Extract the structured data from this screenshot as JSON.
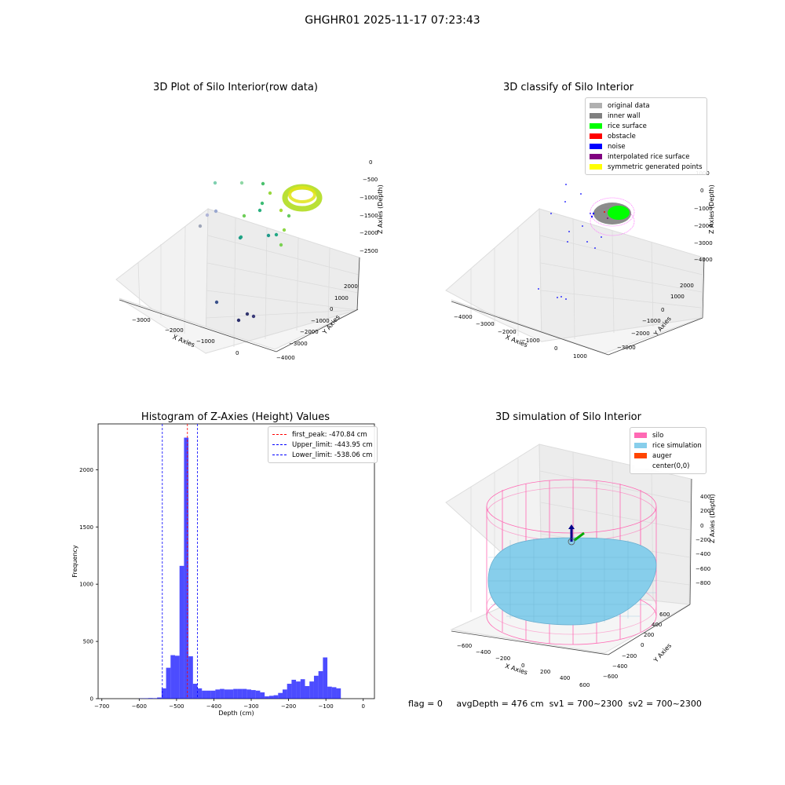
{
  "suptitle": "GHGHR01 2025-11-17 07:23:43",
  "footer": {
    "flag": "flag = 0",
    "avg": "avgDepth = 476 cm",
    "sv1": "sv1 = 700~2300",
    "sv2": "sv2 = 700~2300"
  },
  "colors": {
    "histogram": "#0000ff",
    "peak_line": "#ff0000",
    "limit_line": "#0000ff",
    "silo": "#ff69b4",
    "rice": "#87ceeb",
    "auger": "#ff4500"
  },
  "chart_data": [
    {
      "type": "scatter",
      "projection": "3d",
      "title": "3D Plot of Silo Interior(row data)",
      "xlabel": "X Axies",
      "ylabel": "Y Axies",
      "zlabel": "Z Axies (Depth)",
      "x_ticks": [
        "−3000",
        "−2000",
        "−1000",
        "0"
      ],
      "y_ticks": [
        "2000",
        "1000",
        "0",
        "−1000",
        "−2000",
        "−3000",
        "−4000"
      ],
      "z_ticks": [
        "0",
        "−500",
        "−1000",
        "−1500",
        "−2000",
        "−2500"
      ],
      "colormap": "viridis",
      "dense_cluster": {
        "color": "#b5de2b"
      },
      "points": [
        {
          "color": "#7fd0b0"
        },
        {
          "color": "#8fd7a5"
        },
        {
          "color": "#9aa8d0"
        },
        {
          "color": "#b0b5d8"
        },
        {
          "color": "#9fa6b8"
        },
        {
          "color": "#4ac16d"
        },
        {
          "color": "#3dbc74"
        },
        {
          "color": "#2ab07f"
        },
        {
          "color": "#28ae80"
        },
        {
          "color": "#1f9e89"
        },
        {
          "color": "#1f9a8a"
        },
        {
          "color": "#22a884"
        },
        {
          "color": "#7ad151"
        },
        {
          "color": "#8ed645"
        },
        {
          "color": "#6ece58"
        },
        {
          "color": "#3b528b"
        },
        {
          "color": "#2c2f6c"
        },
        {
          "color": "#31356e"
        },
        {
          "color": "#3a3a7a"
        },
        {
          "color": "#98d83e"
        },
        {
          "color": "#a6db35"
        },
        {
          "color": "#62cb5f"
        }
      ]
    },
    {
      "type": "scatter",
      "projection": "3d",
      "title": "3D classify of Silo Interior",
      "xlabel": "X Axies",
      "ylabel": "Y Axies",
      "zlabel": "Z Axies (Depth)",
      "x_ticks": [
        "−4000",
        "−3000",
        "−2000",
        "−1000",
        "0",
        "1000"
      ],
      "y_ticks": [
        "2000",
        "1000",
        "0",
        "−1000",
        "−2000",
        "−3000"
      ],
      "z_ticks": [
        "1000",
        "0",
        "−1000",
        "−2000",
        "−3000",
        "−4000"
      ],
      "legend": [
        {
          "label": "original data",
          "color": "#b0b0b0"
        },
        {
          "label": "inner wall",
          "color": "#808080"
        },
        {
          "label": "rice surface",
          "color": "#00ff00"
        },
        {
          "label": "obstacle",
          "color": "#ff0000"
        },
        {
          "label": "noise",
          "color": "#0000ff"
        },
        {
          "label": "interpolated rice surface",
          "color": "#800080"
        },
        {
          "label": "symmetric generated points",
          "color": "#ffff00"
        }
      ]
    },
    {
      "type": "bar",
      "title": "Histogram of Z-Axies (Height) Values",
      "xlabel": "Depth (cm)",
      "ylabel": "Frequency",
      "xlim": [
        -710,
        30
      ],
      "ylim": [
        0,
        2400
      ],
      "x_ticks": [
        -700,
        -600,
        -500,
        -400,
        -300,
        -200,
        -100,
        0
      ],
      "y_ticks": [
        0,
        500,
        1000,
        1500,
        2000
      ],
      "bin_width": 12,
      "bins_start": [
        -600,
        -588,
        -576,
        -564,
        -552,
        -540,
        -528,
        -516,
        -504,
        -492,
        -480,
        -468,
        -456,
        -444,
        -432,
        -420,
        -408,
        -396,
        -384,
        -372,
        -360,
        -348,
        -336,
        -324,
        -312,
        -300,
        -288,
        -276,
        -264,
        -252,
        -240,
        -228,
        -216,
        -204,
        -192,
        -180,
        -168,
        -156,
        -144,
        -132,
        -120,
        -108,
        -96,
        -84,
        -72,
        -60,
        -48,
        -36,
        -24,
        -12
      ],
      "counts": [
        2,
        3,
        5,
        4,
        10,
        90,
        270,
        380,
        375,
        1160,
        2280,
        370,
        130,
        90,
        70,
        70,
        70,
        80,
        85,
        80,
        80,
        85,
        85,
        85,
        80,
        75,
        70,
        55,
        20,
        25,
        30,
        50,
        80,
        130,
        165,
        150,
        170,
        110,
        150,
        200,
        240,
        360,
        105,
        100,
        90,
        0,
        0,
        0,
        0,
        0
      ],
      "vlines": [
        {
          "label": "first_peak: -470.84 cm",
          "x": -470.84,
          "color": "#ff0000"
        },
        {
          "label": "Upper_limit: -443.95 cm",
          "x": -443.95,
          "color": "#0000ff"
        },
        {
          "label": "Lower_limit: -538.06 cm",
          "x": -538.06,
          "color": "#0000ff"
        }
      ]
    },
    {
      "type": "surface",
      "projection": "3d",
      "title": "3D simulation of Silo Interior",
      "xlabel": "X Axies",
      "ylabel": "Y Axies",
      "zlabel": "Z Axies (Depth)",
      "x_ticks": [
        "−600",
        "−400",
        "−200",
        "0",
        "200",
        "400",
        "600"
      ],
      "y_ticks": [
        "600",
        "400",
        "200",
        "0",
        "−200",
        "−400",
        "−600"
      ],
      "z_ticks": [
        "400",
        "200",
        "0",
        "−200",
        "−400",
        "−600",
        "−800"
      ],
      "legend": [
        {
          "label": "silo",
          "color": "#ff69b4"
        },
        {
          "label": "rice simulation",
          "color": "#87ceeb"
        },
        {
          "label": "auger",
          "color": "#ff4500"
        },
        {
          "label": "center(0,0)",
          "color": "#ffffff"
        }
      ]
    }
  ]
}
